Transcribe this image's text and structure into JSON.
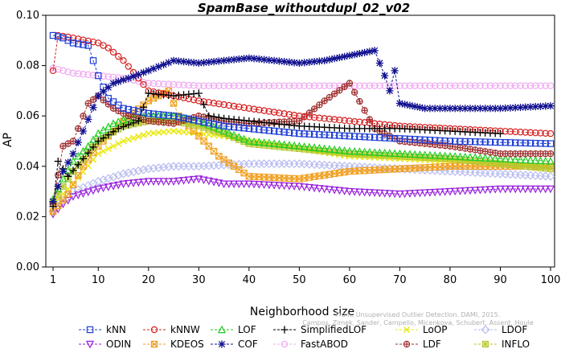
{
  "chart_data": {
    "type": "line",
    "title": "SpamBase_withoutdupl_02_v02",
    "xlabel": "Neighborhood size",
    "ylabel": "AP",
    "xlim": [
      1,
      100
    ],
    "ylim": [
      0,
      0.1
    ],
    "xticks": [
      "1",
      "10",
      "20",
      "30",
      "40",
      "50",
      "60",
      "70",
      "80",
      "90",
      "100"
    ],
    "yticks": [
      "0.00",
      "0.02",
      "0.04",
      "0.06",
      "0.08",
      "0.10"
    ],
    "grid": false,
    "legend_position": "bottom",
    "watermark": {
      "line1": "From: Unsupervised Outlier Detection. DAMI, 2015.",
      "line2": "Campos, Zimek, Sander, Campello, Micenkova, Schubert, Assent, Houle"
    },
    "series": [
      {
        "name": "kNN",
        "color": "#1f3fd6",
        "marker": "square",
        "points": [
          [
            1,
            0.092
          ],
          [
            3,
            0.091
          ],
          [
            5,
            0.089
          ],
          [
            8,
            0.088
          ],
          [
            10,
            0.076
          ],
          [
            12,
            0.067
          ],
          [
            15,
            0.063
          ],
          [
            20,
            0.061
          ],
          [
            25,
            0.06
          ],
          [
            30,
            0.058
          ],
          [
            35,
            0.056
          ],
          [
            40,
            0.055
          ],
          [
            50,
            0.053
          ],
          [
            60,
            0.052
          ],
          [
            70,
            0.051
          ],
          [
            80,
            0.05
          ],
          [
            90,
            0.0495
          ],
          [
            100,
            0.049
          ]
        ]
      },
      {
        "name": "kNNW",
        "color": "#d62020",
        "marker": "circle",
        "points": [
          [
            1,
            0.078
          ],
          [
            2,
            0.092
          ],
          [
            5,
            0.091
          ],
          [
            10,
            0.089
          ],
          [
            12,
            0.087
          ],
          [
            15,
            0.082
          ],
          [
            18,
            0.075
          ],
          [
            20,
            0.07
          ],
          [
            25,
            0.068
          ],
          [
            30,
            0.066
          ],
          [
            40,
            0.063
          ],
          [
            50,
            0.06
          ],
          [
            60,
            0.058
          ],
          [
            70,
            0.056
          ],
          [
            80,
            0.055
          ],
          [
            90,
            0.054
          ],
          [
            100,
            0.053
          ]
        ]
      },
      {
        "name": "LOF",
        "color": "#22cc22",
        "marker": "triangle-up",
        "points": [
          [
            1,
            0.027
          ],
          [
            3,
            0.035
          ],
          [
            5,
            0.042
          ],
          [
            8,
            0.048
          ],
          [
            10,
            0.053
          ],
          [
            13,
            0.057
          ],
          [
            16,
            0.059
          ],
          [
            20,
            0.06
          ],
          [
            25,
            0.06
          ],
          [
            30,
            0.058
          ],
          [
            35,
            0.054
          ],
          [
            40,
            0.05
          ],
          [
            50,
            0.048
          ],
          [
            60,
            0.046
          ],
          [
            70,
            0.045
          ],
          [
            80,
            0.044
          ],
          [
            90,
            0.043
          ],
          [
            100,
            0.042
          ]
        ]
      },
      {
        "name": "SimplifiedLOF",
        "color": "#000000",
        "marker": "plus",
        "points": [
          [
            1,
            0.024
          ],
          [
            2,
            0.042
          ],
          [
            4,
            0.036
          ],
          [
            7,
            0.043
          ],
          [
            10,
            0.05
          ],
          [
            14,
            0.055
          ],
          [
            18,
            0.058
          ],
          [
            20,
            0.069
          ],
          [
            25,
            0.068
          ],
          [
            30,
            0.069
          ],
          [
            32,
            0.06
          ],
          [
            35,
            0.059
          ],
          [
            40,
            0.058
          ],
          [
            50,
            0.056
          ],
          [
            60,
            0.055
          ],
          [
            70,
            0.055
          ],
          [
            80,
            0.054
          ],
          [
            90,
            0.053
          ]
        ]
      },
      {
        "name": "LoOP",
        "color": "#e8e800",
        "marker": "cross",
        "points": [
          [
            1,
            0.025
          ],
          [
            5,
            0.033
          ],
          [
            10,
            0.045
          ],
          [
            15,
            0.05
          ],
          [
            20,
            0.053
          ],
          [
            25,
            0.054
          ],
          [
            30,
            0.053
          ],
          [
            35,
            0.052
          ],
          [
            40,
            0.05
          ],
          [
            50,
            0.047
          ],
          [
            60,
            0.044
          ],
          [
            70,
            0.043
          ],
          [
            80,
            0.042
          ],
          [
            90,
            0.041
          ],
          [
            100,
            0.04
          ]
        ]
      },
      {
        "name": "LDOF",
        "color": "#b8bcf0",
        "marker": "diamond",
        "points": [
          [
            1,
            0.025
          ],
          [
            5,
            0.03
          ],
          [
            10,
            0.034
          ],
          [
            15,
            0.037
          ],
          [
            20,
            0.039
          ],
          [
            25,
            0.04
          ],
          [
            30,
            0.04
          ],
          [
            40,
            0.041
          ],
          [
            50,
            0.041
          ],
          [
            60,
            0.04
          ],
          [
            70,
            0.039
          ],
          [
            80,
            0.038
          ],
          [
            90,
            0.037
          ],
          [
            100,
            0.036
          ]
        ]
      },
      {
        "name": "ODIN",
        "color": "#9922dd",
        "marker": "triangle-down",
        "points": [
          [
            1,
            0.021
          ],
          [
            3,
            0.025
          ],
          [
            5,
            0.028
          ],
          [
            10,
            0.031
          ],
          [
            15,
            0.033
          ],
          [
            20,
            0.034
          ],
          [
            25,
            0.034
          ],
          [
            30,
            0.035
          ],
          [
            35,
            0.033
          ],
          [
            40,
            0.033
          ],
          [
            50,
            0.032
          ],
          [
            60,
            0.03
          ],
          [
            70,
            0.029
          ],
          [
            80,
            0.03
          ],
          [
            90,
            0.031
          ],
          [
            100,
            0.031
          ]
        ]
      },
      {
        "name": "KDEOS",
        "color": "#f0a020",
        "marker": "square-x",
        "points": [
          [
            1,
            0.022
          ],
          [
            4,
            0.029
          ],
          [
            7,
            0.04
          ],
          [
            10,
            0.048
          ],
          [
            15,
            0.058
          ],
          [
            20,
            0.066
          ],
          [
            24,
            0.07
          ],
          [
            26,
            0.06
          ],
          [
            30,
            0.052
          ],
          [
            34,
            0.044
          ],
          [
            40,
            0.036
          ],
          [
            50,
            0.035
          ],
          [
            60,
            0.038
          ],
          [
            70,
            0.039
          ],
          [
            80,
            0.04
          ],
          [
            90,
            0.04
          ],
          [
            100,
            0.04
          ]
        ]
      },
      {
        "name": "COF",
        "color": "#101090",
        "marker": "star",
        "points": [
          [
            1,
            0.026
          ],
          [
            3,
            0.038
          ],
          [
            5,
            0.045
          ],
          [
            7,
            0.054
          ],
          [
            10,
            0.068
          ],
          [
            13,
            0.073
          ],
          [
            16,
            0.075
          ],
          [
            20,
            0.078
          ],
          [
            25,
            0.082
          ],
          [
            30,
            0.081
          ],
          [
            35,
            0.082
          ],
          [
            40,
            0.083
          ],
          [
            45,
            0.082
          ],
          [
            50,
            0.081
          ],
          [
            55,
            0.082
          ],
          [
            60,
            0.084
          ],
          [
            65,
            0.086
          ],
          [
            67,
            0.076
          ],
          [
            68,
            0.07
          ],
          [
            69,
            0.078
          ],
          [
            70,
            0.065
          ],
          [
            75,
            0.063
          ],
          [
            80,
            0.063
          ],
          [
            90,
            0.063
          ],
          [
            100,
            0.064
          ]
        ]
      },
      {
        "name": "FastABOD",
        "color": "#f0aaf0",
        "marker": "circle-small",
        "points": [
          [
            1,
            0.079
          ],
          [
            5,
            0.077
          ],
          [
            10,
            0.076
          ],
          [
            15,
            0.075
          ],
          [
            20,
            0.073
          ],
          [
            30,
            0.072
          ],
          [
            40,
            0.072
          ],
          [
            50,
            0.072
          ],
          [
            60,
            0.072
          ],
          [
            70,
            0.072
          ],
          [
            80,
            0.072
          ],
          [
            90,
            0.072
          ],
          [
            100,
            0.072
          ]
        ]
      },
      {
        "name": "LDF",
        "color": "#a03030",
        "marker": "circle-plus",
        "points": [
          [
            1,
            0.025
          ],
          [
            3,
            0.048
          ],
          [
            5,
            0.05
          ],
          [
            8,
            0.065
          ],
          [
            10,
            0.068
          ],
          [
            13,
            0.063
          ],
          [
            16,
            0.06
          ],
          [
            20,
            0.058
          ],
          [
            25,
            0.057
          ],
          [
            30,
            0.06
          ],
          [
            35,
            0.058
          ],
          [
            40,
            0.057
          ],
          [
            50,
            0.058
          ],
          [
            55,
            0.066
          ],
          [
            60,
            0.073
          ],
          [
            65,
            0.055
          ],
          [
            70,
            0.05
          ],
          [
            80,
            0.048
          ],
          [
            90,
            0.045
          ],
          [
            100,
            0.045
          ]
        ]
      },
      {
        "name": "INFLO",
        "color": "#b8c830",
        "marker": "square-star",
        "points": [
          [
            1,
            0.026
          ],
          [
            5,
            0.038
          ],
          [
            10,
            0.05
          ],
          [
            15,
            0.056
          ],
          [
            20,
            0.058
          ],
          [
            25,
            0.058
          ],
          [
            30,
            0.056
          ],
          [
            35,
            0.053
          ],
          [
            40,
            0.049
          ],
          [
            50,
            0.047
          ],
          [
            60,
            0.045
          ],
          [
            70,
            0.044
          ],
          [
            80,
            0.043
          ],
          [
            90,
            0.041
          ],
          [
            100,
            0.039
          ]
        ]
      }
    ]
  }
}
